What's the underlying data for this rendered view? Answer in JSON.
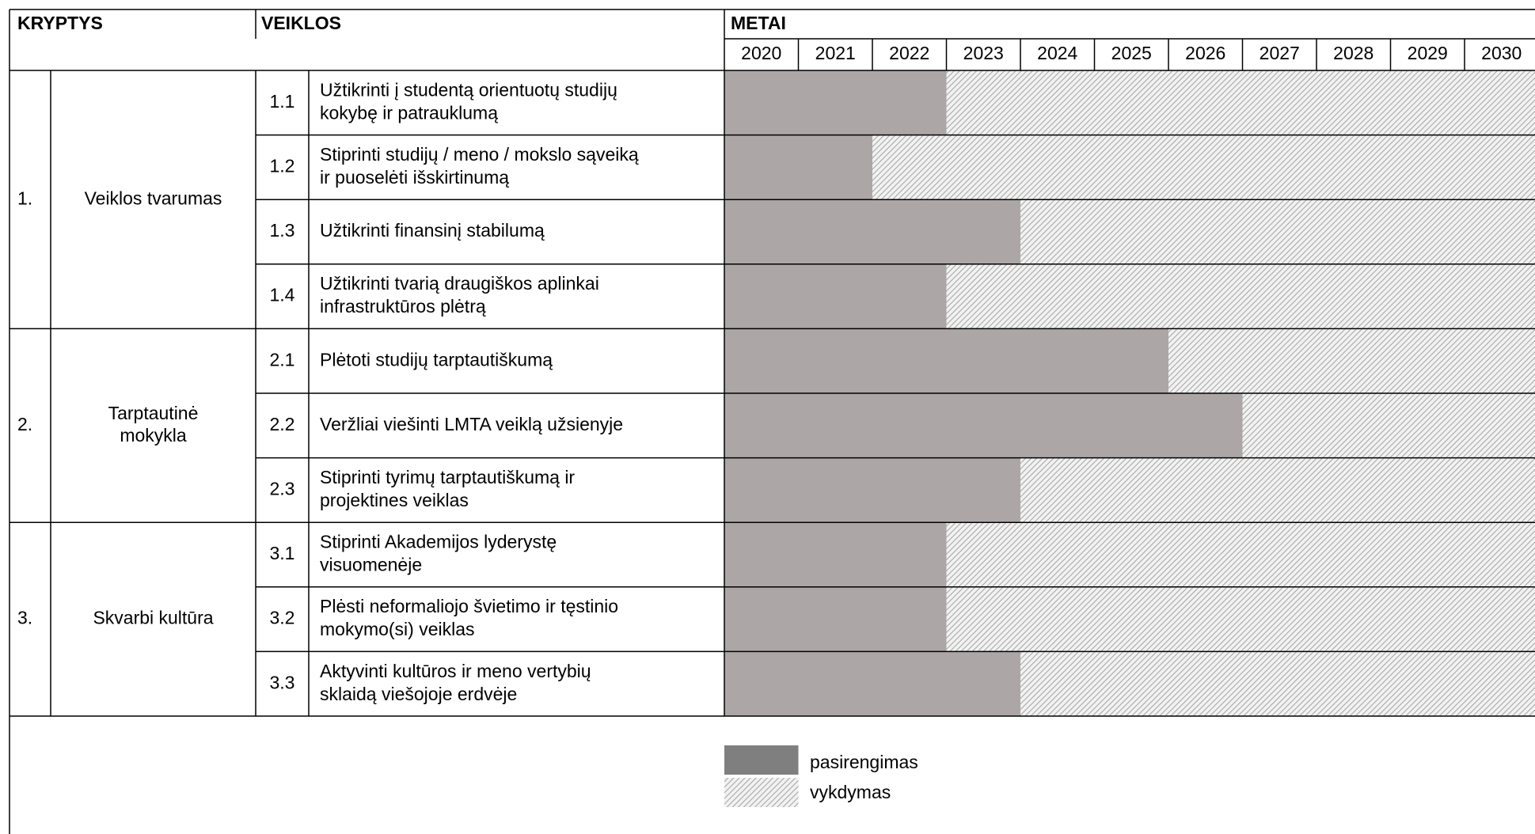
{
  "header": {
    "directions": "KRYPTYS",
    "activities": "VEIKLOS",
    "years_title": "METAI"
  },
  "years": [
    2020,
    2021,
    2022,
    2023,
    2024,
    2025,
    2026,
    2027,
    2028,
    2029,
    2030
  ],
  "groups": [
    {
      "number": "1.",
      "name": [
        "Veiklos tvarumas"
      ],
      "rows": [
        {
          "code": "1.1",
          "lines": [
            "Užtikrinti į studentą orientuotų studijų",
            "kokybę ir patrauklumą"
          ],
          "preparation_end": 2022
        },
        {
          "code": "1.2",
          "lines": [
            "Stiprinti studijų / meno / mokslo sąveiką",
            "ir puoselėti išskirtinumą"
          ],
          "preparation_end": 2021
        },
        {
          "code": "1.3",
          "lines": [
            "Užtikrinti finansinį stabilumą"
          ],
          "preparation_end": 2023
        },
        {
          "code": "1.4",
          "lines": [
            "Užtikrinti tvarią draugiškos aplinkai",
            "infrastruktūros plėtrą"
          ],
          "preparation_end": 2022
        }
      ]
    },
    {
      "number": "2.",
      "name": [
        "Tarptautinė",
        "mokykla"
      ],
      "rows": [
        {
          "code": "2.1",
          "lines": [
            "Plėtoti studijų tarptautiškumą"
          ],
          "preparation_end": 2025
        },
        {
          "code": "2.2",
          "lines": [
            "Veržliai viešinti LMTA veiklą užsienyje"
          ],
          "preparation_end": 2026
        },
        {
          "code": "2.3",
          "lines": [
            "Stiprinti tyrimų tarptautiškumą ir",
            "projektines veiklas"
          ],
          "preparation_end": 2023
        }
      ]
    },
    {
      "number": "3.",
      "name": [
        "Skvarbi kultūra"
      ],
      "rows": [
        {
          "code": "3.1",
          "lines": [
            "Stiprinti Akademijos lyderystę",
            "visuomenėje"
          ],
          "preparation_end": 2022
        },
        {
          "code": "3.2",
          "lines": [
            "Plėsti neformaliojo švietimo ir tęstinio",
            "mokymo(si) veiklas"
          ],
          "preparation_end": 2022
        },
        {
          "code": "3.3",
          "lines": [
            "Aktyvinti kultūros ir meno vertybių",
            "sklaidą viešojoje erdvėje"
          ],
          "preparation_end": 2023
        }
      ]
    }
  ],
  "legend": {
    "preparation": "pasirengimas",
    "execution": "vykdymas"
  }
}
